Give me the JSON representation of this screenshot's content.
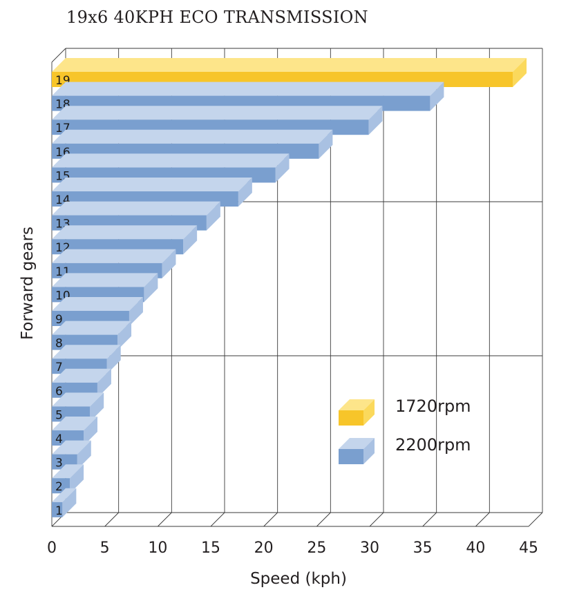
{
  "chart_data": {
    "type": "bar",
    "orientation": "horizontal",
    "title": "19x6 40KPH ECO TRANSMISSION",
    "xlabel": "Speed (kph)",
    "ylabel": "Forward gears",
    "xlim": [
      0,
      45
    ],
    "xticks": [
      "0",
      "5",
      "10",
      "15",
      "20",
      "25",
      "30",
      "35",
      "40",
      "45"
    ],
    "grid": true,
    "style": "3d",
    "categories": [
      "1",
      "2",
      "3",
      "4",
      "5",
      "6",
      "7",
      "8",
      "9",
      "10",
      "11",
      "12",
      "13",
      "14",
      "15",
      "16",
      "17",
      "18",
      "19"
    ],
    "series": [
      {
        "name": "1720rpm",
        "color": "#f7c52a",
        "values": [
          null,
          null,
          null,
          null,
          null,
          null,
          null,
          null,
          null,
          null,
          null,
          null,
          null,
          null,
          null,
          null,
          null,
          null,
          43.5
        ]
      },
      {
        "name": "2200rpm",
        "color": "#7a9fcf",
        "values": [
          1.0,
          1.7,
          2.4,
          3.0,
          3.6,
          4.3,
          5.2,
          6.2,
          7.3,
          8.7,
          10.4,
          12.4,
          14.6,
          17.6,
          21.1,
          25.2,
          29.9,
          35.7,
          null
        ]
      }
    ],
    "legend": {
      "placement": "right",
      "entries": [
        "1720rpm",
        "2200rpm"
      ]
    }
  }
}
